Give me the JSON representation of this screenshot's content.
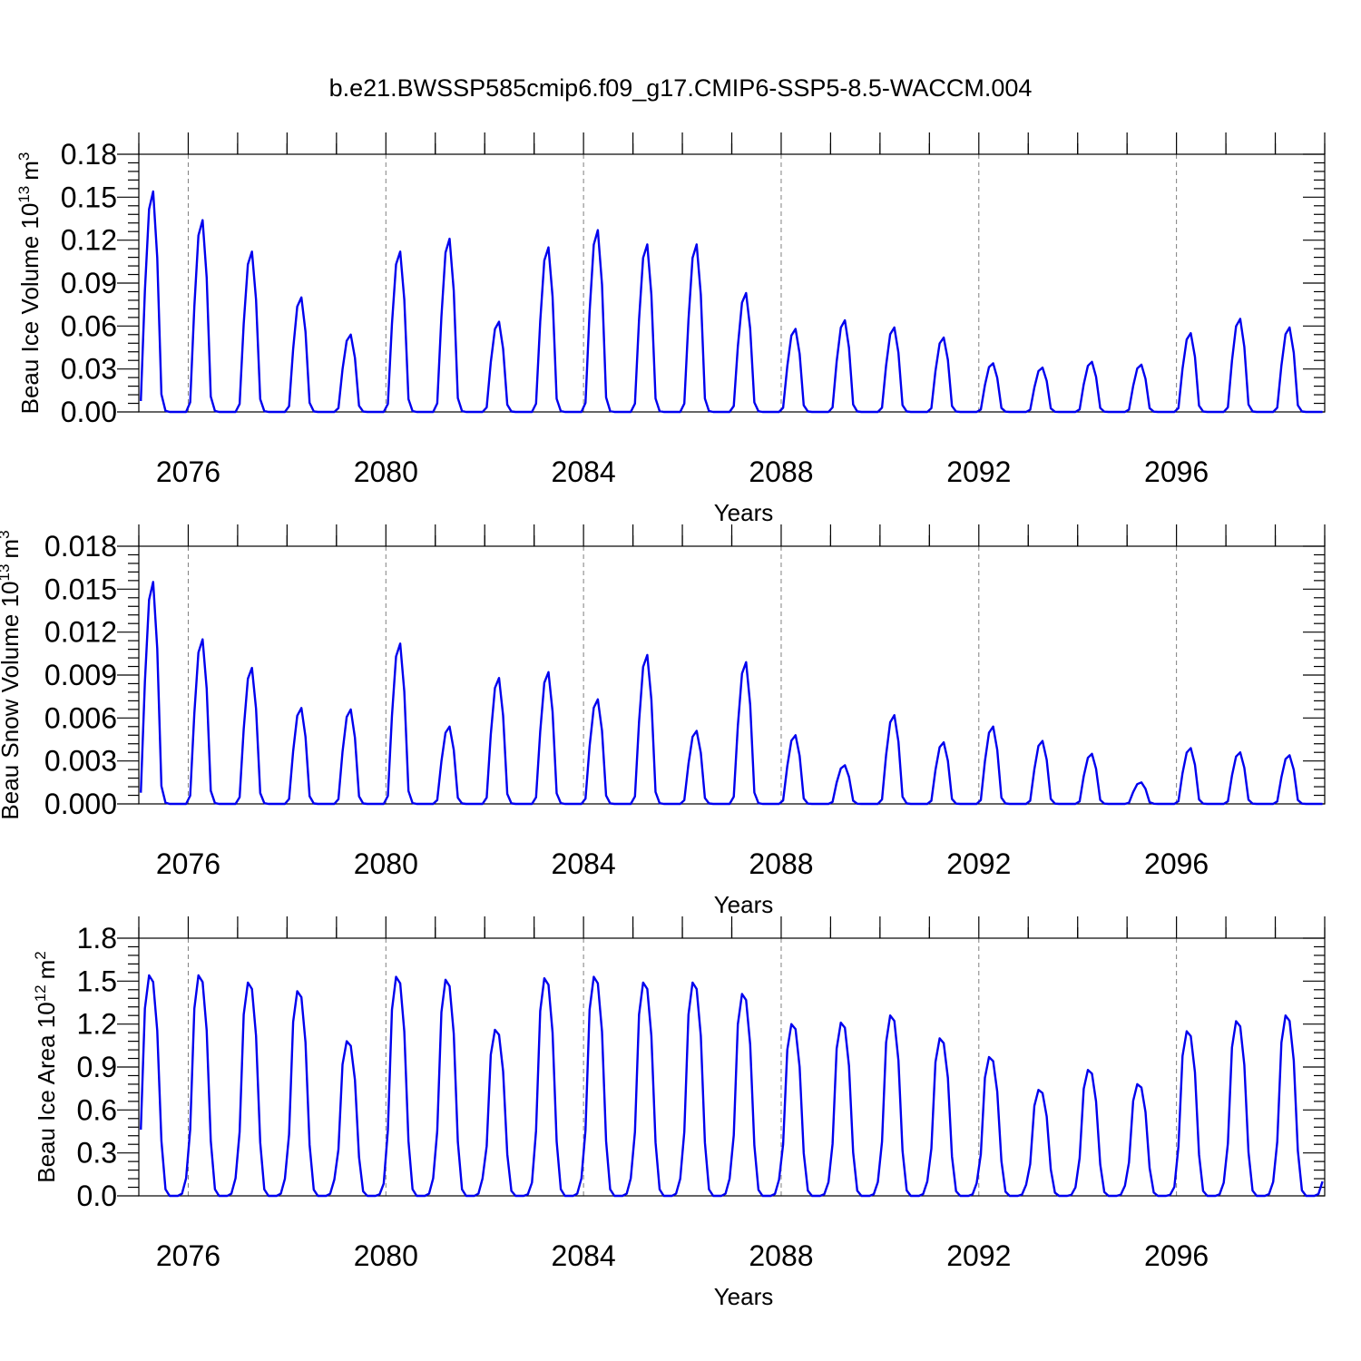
{
  "chart_data": [
    {
      "type": "line",
      "title": "b.e21.BWSSP585cmip6.f09_g17.CMIP6-SSP5-8.5-WACCM.004",
      "ylabel": "Beau Ice Volume 10",
      "ylabel_exp": "13",
      "ylabel_unit": "m",
      "ylabel_unit_exp": "3",
      "xlabel": "Years",
      "xlim": [
        2075,
        2099
      ],
      "ylim": [
        0,
        0.18
      ],
      "yticks": [
        "0.00",
        "0.03",
        "0.06",
        "0.09",
        "0.12",
        "0.15",
        "0.18"
      ],
      "xticks": [
        "2076",
        "2080",
        "2084",
        "2088",
        "2092",
        "2096"
      ],
      "grid": "vertical dashed at labeled years",
      "series": [
        {
          "name": "Beau Ice Volume",
          "color": "#0000ee",
          "start": 2075.04,
          "peak_month": 3,
          "peaks": [
            0.154,
            0.134,
            0.112,
            0.08,
            0.054,
            0.112,
            0.121,
            0.063,
            0.115,
            0.127,
            0.117,
            0.117,
            0.083,
            0.058,
            0.064,
            0.059,
            0.052,
            0.034,
            0.031,
            0.035,
            0.033,
            0.055,
            0.065,
            0.059
          ],
          "values": []
        }
      ]
    },
    {
      "type": "line",
      "title": "",
      "ylabel": "Beau Snow Volume 10",
      "ylabel_exp": "13",
      "ylabel_unit": "m",
      "ylabel_unit_exp": "3",
      "xlabel": "Years",
      "xlim": [
        2075,
        2099
      ],
      "ylim": [
        0,
        0.018
      ],
      "yticks": [
        "0.000",
        "0.003",
        "0.006",
        "0.009",
        "0.012",
        "0.015",
        "0.018"
      ],
      "xticks": [
        "2076",
        "2080",
        "2084",
        "2088",
        "2092",
        "2096"
      ],
      "grid": "vertical dashed at labeled years",
      "series": [
        {
          "name": "Beau Snow Volume",
          "color": "#0000ee",
          "start": 2075.04,
          "peak_month": 3,
          "peaks": [
            0.0155,
            0.0115,
            0.0095,
            0.0067,
            0.0066,
            0.0112,
            0.0054,
            0.0088,
            0.0092,
            0.0073,
            0.0104,
            0.0051,
            0.0099,
            0.0048,
            0.0027,
            0.0062,
            0.0043,
            0.0054,
            0.0044,
            0.0035,
            0.0015,
            0.0039,
            0.0036,
            0.0034
          ],
          "values": []
        }
      ]
    },
    {
      "type": "line",
      "title": "",
      "ylabel": "Beau Ice Area 10",
      "ylabel_exp": "12",
      "ylabel_unit": "m",
      "ylabel_unit_exp": "2",
      "xlabel": "Years",
      "xlim": [
        2075,
        2099
      ],
      "ylim": [
        0,
        1.8
      ],
      "yticks": [
        "0.0",
        "0.3",
        "0.6",
        "0.9",
        "1.2",
        "1.5",
        "1.8"
      ],
      "xticks": [
        "2076",
        "2080",
        "2084",
        "2088",
        "2092",
        "2096"
      ],
      "grid": "vertical dashed at labeled years",
      "series": [
        {
          "name": "Beau Ice Area",
          "color": "#0000ee",
          "start": 2075.04,
          "peak_month": 2,
          "peaks": [
            1.54,
            1.54,
            1.49,
            1.43,
            1.08,
            1.53,
            1.51,
            1.16,
            1.52,
            1.53,
            1.49,
            1.49,
            1.41,
            1.2,
            1.21,
            1.26,
            1.1,
            0.97,
            0.74,
            0.88,
            0.78,
            1.15,
            1.22,
            1.26
          ],
          "values": []
        }
      ]
    }
  ]
}
